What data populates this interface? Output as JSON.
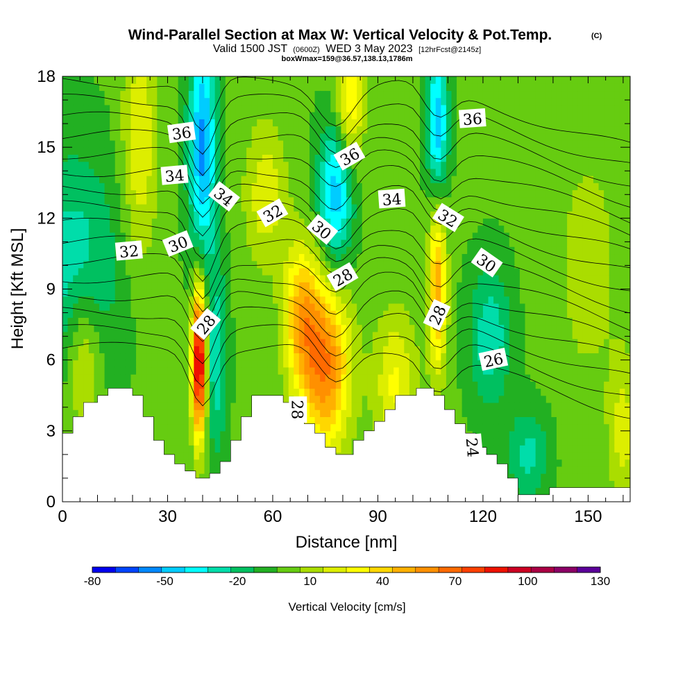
{
  "chart_data": {
    "type": "heatmap",
    "title": "Wind-Parallel Section at Max W: Vertical Velocity & Pot.Temp.",
    "title_mark": "(C)",
    "subtitle_prefix": "Valid 1500 JST",
    "subtitle_utc": "(0600Z)",
    "subtitle_date": "WED 3 May 2023",
    "subtitle_forecast": "[12hrFcst@2145z]",
    "subtitle_box": "boxWmax=159@36.57,138.13,1786m",
    "xlabel": "Distance [nm]",
    "ylabel": "Height [Kft MSL]",
    "xlim": [
      0,
      162
    ],
    "ylim": [
      0,
      18
    ],
    "x_ticks": [
      0,
      30,
      60,
      90,
      120,
      150
    ],
    "y_ticks": [
      0,
      3,
      6,
      9,
      12,
      15,
      18
    ],
    "colorbar": {
      "title": "Vertical Velocity [cm/s]",
      "levels": [
        -80,
        -70,
        -60,
        -50,
        -40,
        -30,
        -20,
        -10,
        0,
        10,
        20,
        30,
        40,
        50,
        60,
        70,
        80,
        90,
        100,
        110,
        120,
        130
      ],
      "tick_labels": [
        "-80",
        "-50",
        "-20",
        "10",
        "40",
        "70",
        "100",
        "130"
      ],
      "tick_values": [
        -80,
        -50,
        -20,
        10,
        40,
        70,
        100,
        130
      ],
      "colors": [
        "#0000ee",
        "#0044ff",
        "#0088ff",
        "#00ccff",
        "#00ffff",
        "#00ddaa",
        "#00c060",
        "#22b022",
        "#66cc11",
        "#aadd00",
        "#ddee00",
        "#ffff00",
        "#ffd700",
        "#ffb000",
        "#ff9000",
        "#ff6a00",
        "#ff4000",
        "#ee1100",
        "#cc0022",
        "#aa0044",
        "#8b0066",
        "#5b0099"
      ]
    },
    "contour_labels": [
      {
        "text": "36",
        "x": 34,
        "y": 15.6,
        "angle": -8
      },
      {
        "text": "36",
        "x": 82,
        "y": 14.6,
        "angle": -30
      },
      {
        "text": "36",
        "x": 117,
        "y": 16.2,
        "angle": -4
      },
      {
        "text": "34",
        "x": 32,
        "y": 13.8,
        "angle": -5
      },
      {
        "text": "34",
        "x": 46,
        "y": 12.9,
        "angle": 38
      },
      {
        "text": "34",
        "x": 94,
        "y": 12.8,
        "angle": -4
      },
      {
        "text": "32",
        "x": 19,
        "y": 10.6,
        "angle": -5
      },
      {
        "text": "32",
        "x": 60,
        "y": 12.2,
        "angle": -30
      },
      {
        "text": "32",
        "x": 110,
        "y": 12.0,
        "angle": 32
      },
      {
        "text": "30",
        "x": 33,
        "y": 10.9,
        "angle": -22
      },
      {
        "text": "30",
        "x": 74,
        "y": 11.5,
        "angle": 40
      },
      {
        "text": "30",
        "x": 121,
        "y": 10.1,
        "angle": 35
      },
      {
        "text": "28",
        "x": 41,
        "y": 7.5,
        "angle": -50
      },
      {
        "text": "28",
        "x": 80,
        "y": 9.5,
        "angle": -30
      },
      {
        "text": "28",
        "x": 107,
        "y": 7.9,
        "angle": -65
      },
      {
        "text": "28",
        "x": 67,
        "y": 3.9,
        "angle": 90
      },
      {
        "text": "26",
        "x": 123,
        "y": 6.0,
        "angle": -12
      },
      {
        "text": "24",
        "x": 117,
        "y": 2.3,
        "angle": 85
      }
    ],
    "w_features": [
      {
        "x": 3,
        "y": 10,
        "sx": 14,
        "sy": 5,
        "w": -28
      },
      {
        "x": 22,
        "y": 15,
        "sx": 5,
        "sy": 5,
        "w": 28
      },
      {
        "x": 40,
        "y": 15,
        "sx": 4,
        "sy": 5,
        "w": -55
      },
      {
        "x": 39,
        "y": 6,
        "sx": 2,
        "sy": 3.2,
        "w": 110
      },
      {
        "x": 44,
        "y": 6,
        "sx": 3,
        "sy": 4,
        "w": -30
      },
      {
        "x": 75,
        "y": 5.8,
        "sx": 7,
        "sy": 3.5,
        "w": 68
      },
      {
        "x": 68,
        "y": 8,
        "sx": 5,
        "sy": 3,
        "w": 45
      },
      {
        "x": 78,
        "y": 13,
        "sx": 5,
        "sy": 3,
        "w": -50
      },
      {
        "x": 82,
        "y": 17,
        "sx": 4,
        "sy": 3,
        "w": 38
      },
      {
        "x": 107,
        "y": 9,
        "sx": 2.5,
        "sy": 3.5,
        "w": 55
      },
      {
        "x": 107,
        "y": 16,
        "sx": 3,
        "sy": 3,
        "w": -50
      },
      {
        "x": 122,
        "y": 7,
        "sx": 6,
        "sy": 3,
        "w": -30
      },
      {
        "x": 150,
        "y": 10,
        "sx": 10,
        "sy": 6,
        "w": 12
      },
      {
        "x": 6,
        "y": 6,
        "sx": 5,
        "sy": 3,
        "w": 28
      },
      {
        "x": 133,
        "y": 2,
        "sx": 6,
        "sy": 2,
        "w": -25
      },
      {
        "x": 58,
        "y": 13,
        "sx": 6,
        "sy": 3,
        "w": 25
      },
      {
        "x": 95,
        "y": 5,
        "sx": 6,
        "sy": 3,
        "w": 30
      },
      {
        "x": 160,
        "y": 3,
        "sx": 4,
        "sy": 3,
        "w": 22
      }
    ],
    "terrain": [
      {
        "x": 0,
        "h": 2.9
      },
      {
        "x": 3,
        "h": 3.6
      },
      {
        "x": 6,
        "h": 4.2
      },
      {
        "x": 10,
        "h": 4.5
      },
      {
        "x": 13,
        "h": 4.8
      },
      {
        "x": 20,
        "h": 4.5
      },
      {
        "x": 23,
        "h": 3.6
      },
      {
        "x": 26,
        "h": 2.6
      },
      {
        "x": 29,
        "h": 2.0
      },
      {
        "x": 32,
        "h": 1.6
      },
      {
        "x": 35,
        "h": 1.3
      },
      {
        "x": 38,
        "h": 1.0
      },
      {
        "x": 42,
        "h": 1.2
      },
      {
        "x": 45,
        "h": 1.7
      },
      {
        "x": 48,
        "h": 2.6
      },
      {
        "x": 51,
        "h": 3.6
      },
      {
        "x": 54,
        "h": 4.5
      },
      {
        "x": 60,
        "h": 4.5
      },
      {
        "x": 63,
        "h": 4.2
      },
      {
        "x": 66,
        "h": 3.6
      },
      {
        "x": 69,
        "h": 3.3
      },
      {
        "x": 72,
        "h": 2.9
      },
      {
        "x": 75,
        "h": 2.3
      },
      {
        "x": 78,
        "h": 2.0
      },
      {
        "x": 83,
        "h": 2.6
      },
      {
        "x": 86,
        "h": 3.0
      },
      {
        "x": 89,
        "h": 3.4
      },
      {
        "x": 92,
        "h": 3.9
      },
      {
        "x": 95,
        "h": 4.5
      },
      {
        "x": 101,
        "h": 4.8
      },
      {
        "x": 106,
        "h": 4.5
      },
      {
        "x": 109,
        "h": 3.9
      },
      {
        "x": 112,
        "h": 3.3
      },
      {
        "x": 115,
        "h": 2.9
      },
      {
        "x": 118,
        "h": 2.3
      },
      {
        "x": 121,
        "h": 2.0
      },
      {
        "x": 124,
        "h": 1.6
      },
      {
        "x": 127,
        "h": 1.0
      },
      {
        "x": 130,
        "h": 0.3
      },
      {
        "x": 139,
        "h": 0.6
      },
      {
        "x": 162,
        "h": 0.6
      }
    ]
  }
}
